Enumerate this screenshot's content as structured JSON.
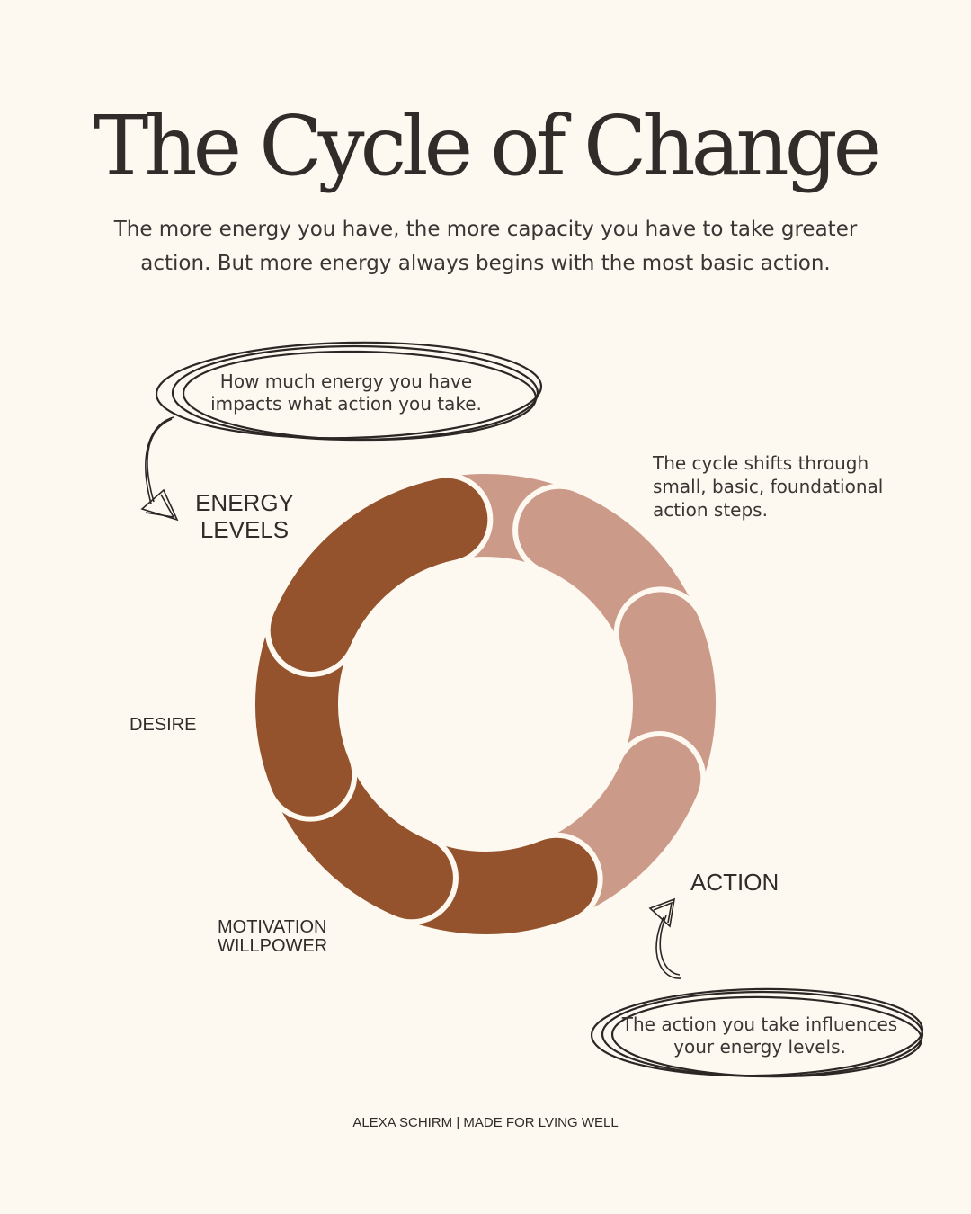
{
  "title": "The Cycle of Change",
  "subtitle": "The more energy you have, the more capacity you have to take greater action. But more energy always begins with the most basic action.",
  "notes": {
    "top": "How much energy you have impacts what action you take.",
    "right": "The cycle shifts through small, basic, foundational action steps.",
    "bottom": "The action you take influences your energy levels."
  },
  "labels": {
    "energy_levels": "ENERGY LEVELS",
    "desire": "DESIRE",
    "motivation_willpower": "MOTIVATION WILLPOWER",
    "action": "ACTION"
  },
  "footer": "ALEXA SCHIRM | MADE FOR LVING WELL",
  "colors": {
    "background": "#fdf8f0",
    "light_segment": "#cb9a88",
    "dark_segment": "#94532d",
    "text": "#2f2c29"
  },
  "cycle": {
    "segments": 8,
    "light_count": 4,
    "dark_count": 4
  }
}
